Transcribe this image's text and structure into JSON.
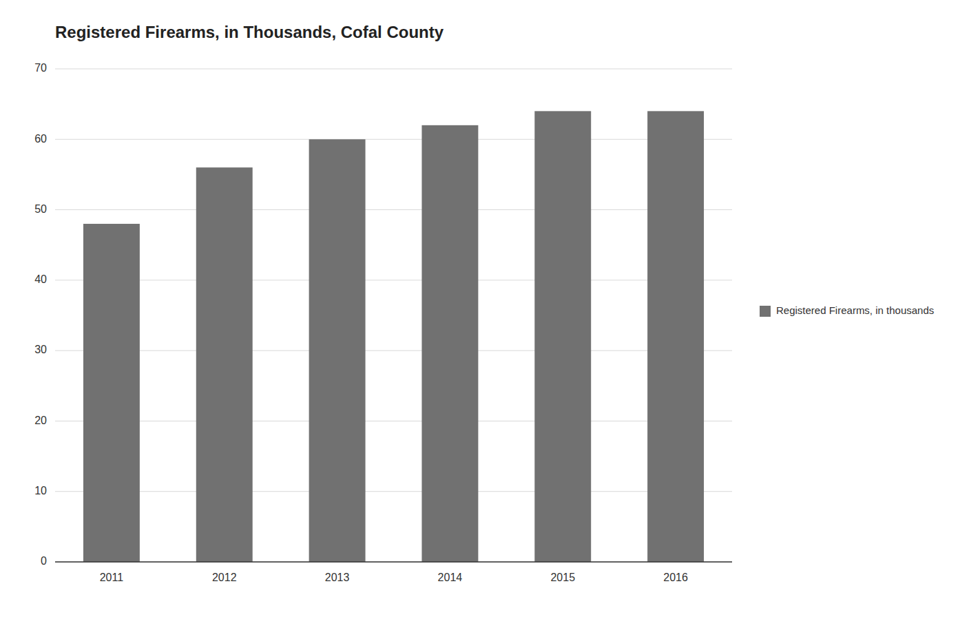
{
  "chart_data": {
    "type": "bar",
    "title": "Registered Firearms, in Thousands, Cofal County",
    "categories": [
      "2011",
      "2012",
      "2013",
      "2014",
      "2015",
      "2016"
    ],
    "series": [
      {
        "name": "Registered Firearms, in thousands",
        "color": "#717171",
        "values": [
          48,
          56,
          60,
          62,
          64,
          64
        ]
      }
    ],
    "ylim": [
      0,
      70
    ],
    "yticks": [
      0,
      10,
      20,
      30,
      40,
      50,
      60,
      70
    ],
    "grid": true,
    "legend": "right"
  }
}
